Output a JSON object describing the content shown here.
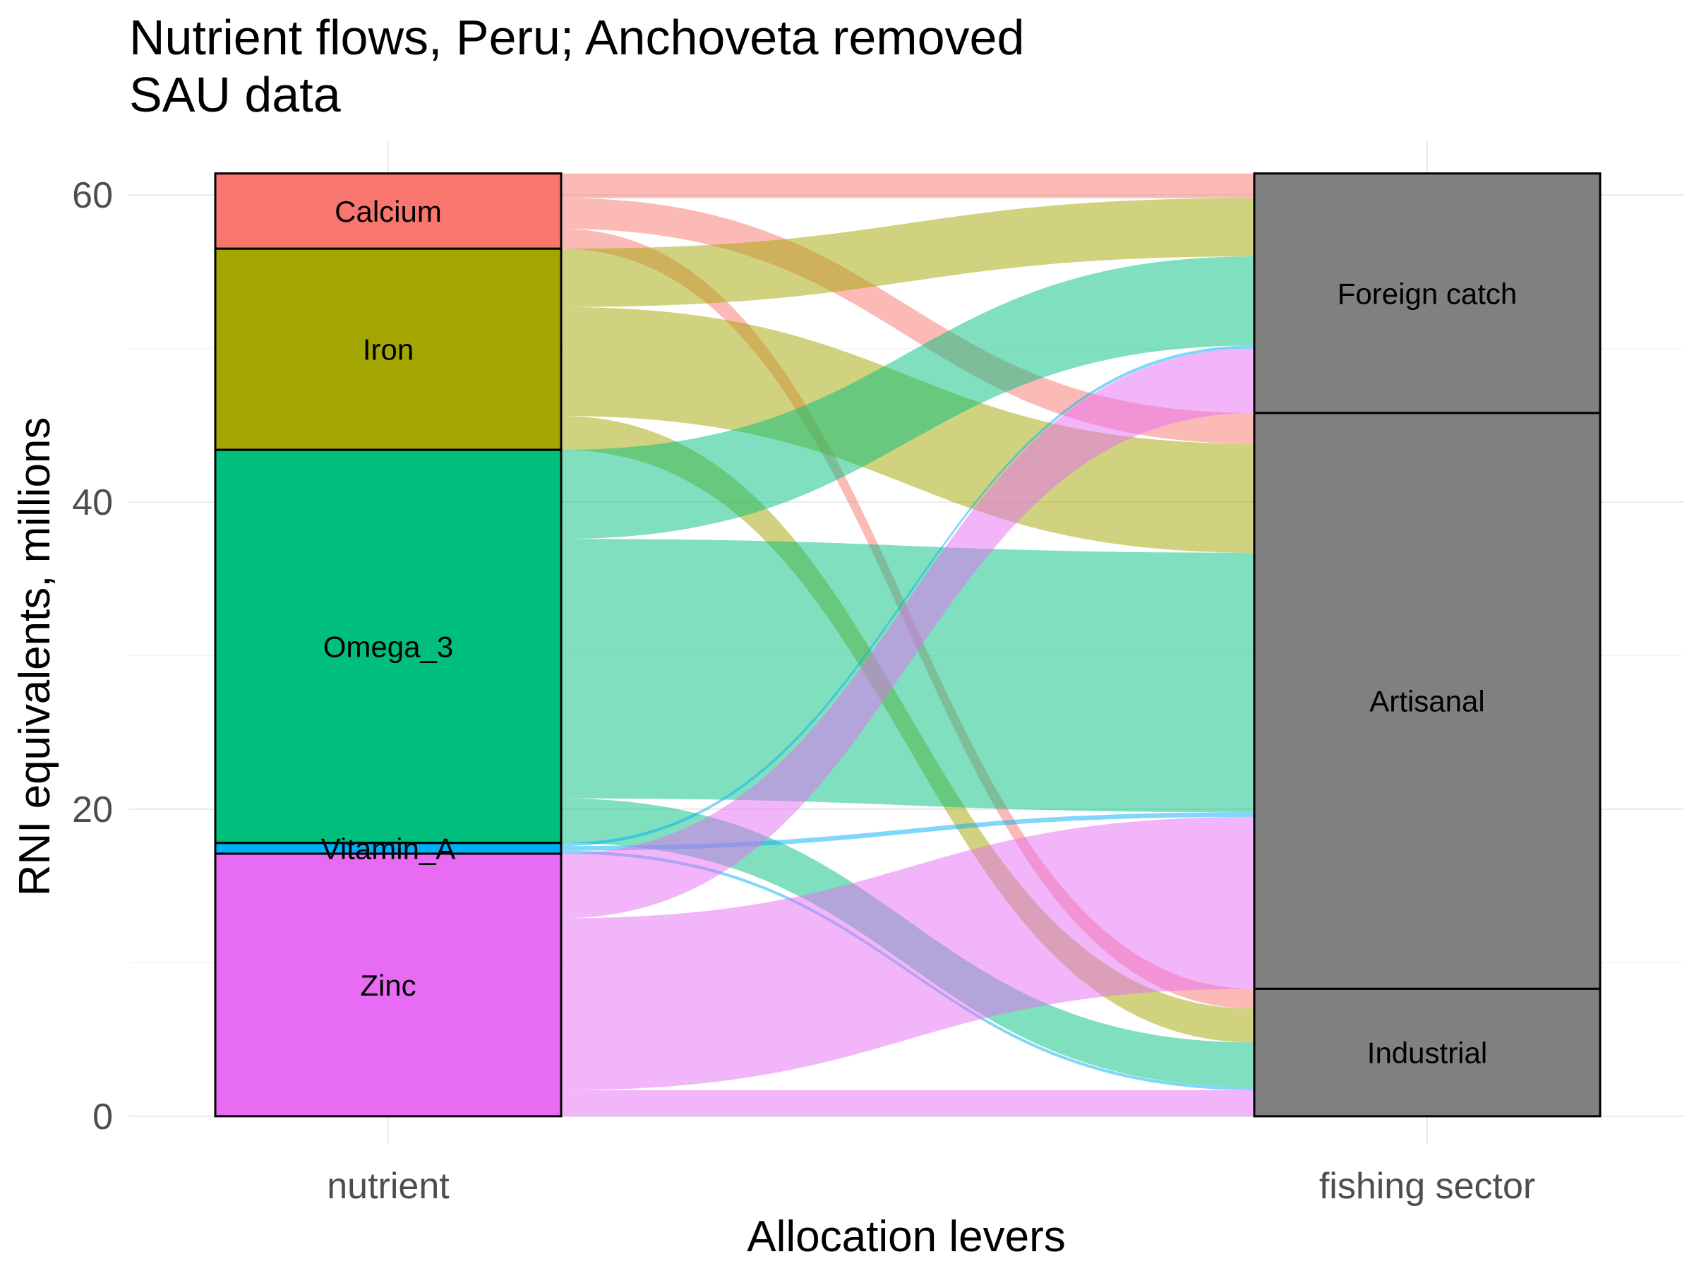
{
  "chart_data": {
    "type": "alluvial",
    "title": "Nutrient flows, Peru; Anchoveta removed",
    "subtitle": "SAU data",
    "xlabel": "Allocation levers",
    "ylabel": "RNI equivalents, millions",
    "axes": [
      "nutrient",
      "fishing sector"
    ],
    "y_ticks": [
      0,
      20,
      40,
      60
    ],
    "ylim": [
      -1.8,
      63.5
    ],
    "grid": true,
    "nutrients": [
      {
        "name": "Calcium",
        "color": "#F8766D"
      },
      {
        "name": "Iron",
        "color": "#A3A500"
      },
      {
        "name": "Omega_3",
        "color": "#00BF7D"
      },
      {
        "name": "Vitamin_A",
        "color": "#00B0F6"
      },
      {
        "name": "Zinc",
        "color": "#E76BF3"
      }
    ],
    "sectors": [
      {
        "name": "Foreign catch"
      },
      {
        "name": "Artisanal"
      },
      {
        "name": "Industrial"
      }
    ],
    "flows": [
      {
        "nutrient": "Calcium",
        "sector": "Foreign catch",
        "value": 1.6
      },
      {
        "nutrient": "Calcium",
        "sector": "Artisanal",
        "value": 2.0
      },
      {
        "nutrient": "Calcium",
        "sector": "Industrial",
        "value": 1.3
      },
      {
        "nutrient": "Iron",
        "sector": "Foreign catch",
        "value": 3.8
      },
      {
        "nutrient": "Iron",
        "sector": "Artisanal",
        "value": 7.1
      },
      {
        "nutrient": "Iron",
        "sector": "Industrial",
        "value": 2.2
      },
      {
        "nutrient": "Omega_3",
        "sector": "Foreign catch",
        "value": 5.8
      },
      {
        "nutrient": "Omega_3",
        "sector": "Artisanal",
        "value": 16.9
      },
      {
        "nutrient": "Omega_3",
        "sector": "Industrial",
        "value": 2.9
      },
      {
        "nutrient": "Vitamin_A",
        "sector": "Foreign catch",
        "value": 0.2
      },
      {
        "nutrient": "Vitamin_A",
        "sector": "Artisanal",
        "value": 0.3
      },
      {
        "nutrient": "Vitamin_A",
        "sector": "Industrial",
        "value": 0.2
      },
      {
        "nutrient": "Zinc",
        "sector": "Foreign catch",
        "value": 4.2
      },
      {
        "nutrient": "Zinc",
        "sector": "Artisanal",
        "value": 11.2
      },
      {
        "nutrient": "Zinc",
        "sector": "Industrial",
        "value": 1.7
      }
    ]
  }
}
